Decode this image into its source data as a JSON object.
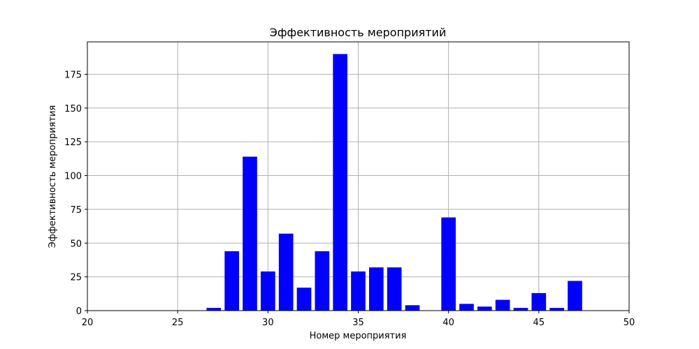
{
  "chart_data": {
    "type": "bar",
    "title": "Эффективность мероприятий",
    "xlabel": "Номер мероприятия",
    "ylabel": "Эффективность мероприятия",
    "xlim": [
      20,
      50
    ],
    "ylim": [
      0,
      199
    ],
    "xticks": [
      20,
      25,
      30,
      35,
      40,
      45,
      50
    ],
    "yticks": [
      0,
      25,
      50,
      75,
      100,
      125,
      150,
      175
    ],
    "grid": true,
    "bar_width": 0.8,
    "color": "#0000ff",
    "x": [
      27,
      28,
      29,
      30,
      31,
      32,
      33,
      34,
      35,
      36,
      37,
      38,
      40,
      41,
      42,
      43,
      44,
      45,
      46,
      47
    ],
    "values": [
      2,
      44,
      114,
      29,
      57,
      17,
      44,
      190,
      29,
      32,
      32,
      4,
      69,
      5,
      3,
      8,
      2,
      13,
      2,
      22
    ]
  }
}
